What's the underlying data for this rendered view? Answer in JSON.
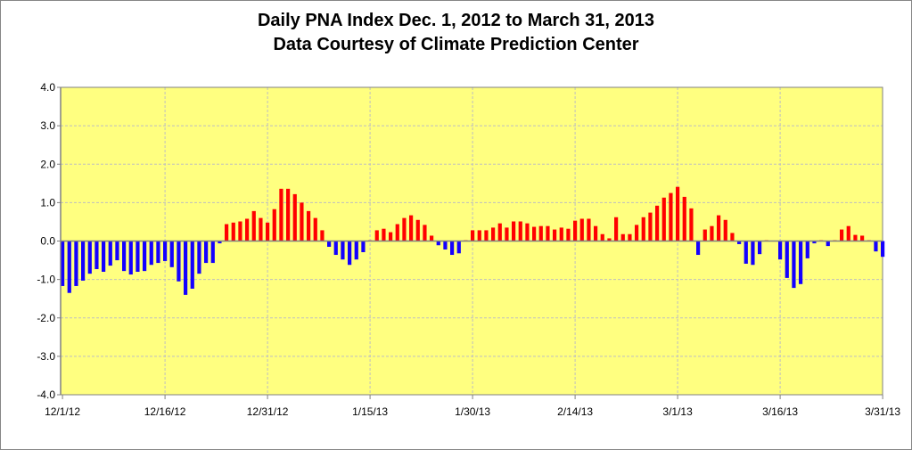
{
  "chart_data": {
    "type": "bar",
    "title": "Daily PNA Index Dec. 1, 2012 to March 31, 2013",
    "subtitle": "Data Courtesy of Climate Prediction Center",
    "xlabel": "",
    "ylabel": "",
    "ylim": [
      -4.0,
      4.0
    ],
    "yticks": [
      "4.0",
      "3.0",
      "2.0",
      "1.0",
      "0.0",
      "-1.0",
      "-2.0",
      "-3.0",
      "-4.0"
    ],
    "xtick_labels": [
      "12/1/12",
      "12/16/12",
      "12/31/12",
      "1/15/13",
      "1/30/13",
      "2/14/13",
      "3/1/13",
      "3/16/13",
      "3/31/13"
    ],
    "xtick_day_index": [
      1,
      16,
      31,
      46,
      61,
      76,
      91,
      106,
      121
    ],
    "grid": true,
    "colors": {
      "positive": "#FF0000",
      "negative": "#1400FF",
      "plot_background": "#FFFF80",
      "grid": "#BFBFBF"
    },
    "values": [
      -1.17,
      -1.35,
      -1.17,
      -1.03,
      -0.85,
      -0.73,
      -0.8,
      -0.64,
      -0.5,
      -0.78,
      -0.87,
      -0.8,
      -0.78,
      -0.62,
      -0.57,
      -0.52,
      -0.68,
      -1.05,
      -1.4,
      -1.24,
      -0.85,
      -0.57,
      -0.57,
      -0.06,
      0.44,
      0.48,
      0.51,
      0.58,
      0.78,
      0.6,
      0.48,
      0.83,
      1.36,
      1.36,
      1.22,
      1.0,
      0.78,
      0.6,
      0.28,
      -0.15,
      -0.36,
      -0.48,
      -0.62,
      -0.48,
      -0.29,
      0.02,
      0.28,
      0.32,
      0.23,
      0.44,
      0.6,
      0.67,
      0.55,
      0.42,
      0.14,
      -0.11,
      -0.22,
      -0.36,
      -0.32,
      0.02,
      0.28,
      0.28,
      0.28,
      0.35,
      0.46,
      0.35,
      0.51,
      0.51,
      0.46,
      0.37,
      0.39,
      0.39,
      0.3,
      0.35,
      0.32,
      0.53,
      0.58,
      0.58,
      0.39,
      0.18,
      0.07,
      0.62,
      0.18,
      0.18,
      0.42,
      0.62,
      0.74,
      0.92,
      1.13,
      1.25,
      1.41,
      1.15,
      0.85,
      -0.36,
      0.3,
      0.39,
      0.67,
      0.55,
      0.21,
      -0.08,
      -0.59,
      -0.62,
      -0.34,
      0.02,
      0.0,
      -0.48,
      -0.96,
      -1.22,
      -1.12,
      -0.45,
      -0.06,
      0.02,
      -0.13,
      0.02,
      0.3,
      0.39,
      0.16,
      0.14,
      0.02,
      -0.27,
      -0.41
    ]
  }
}
